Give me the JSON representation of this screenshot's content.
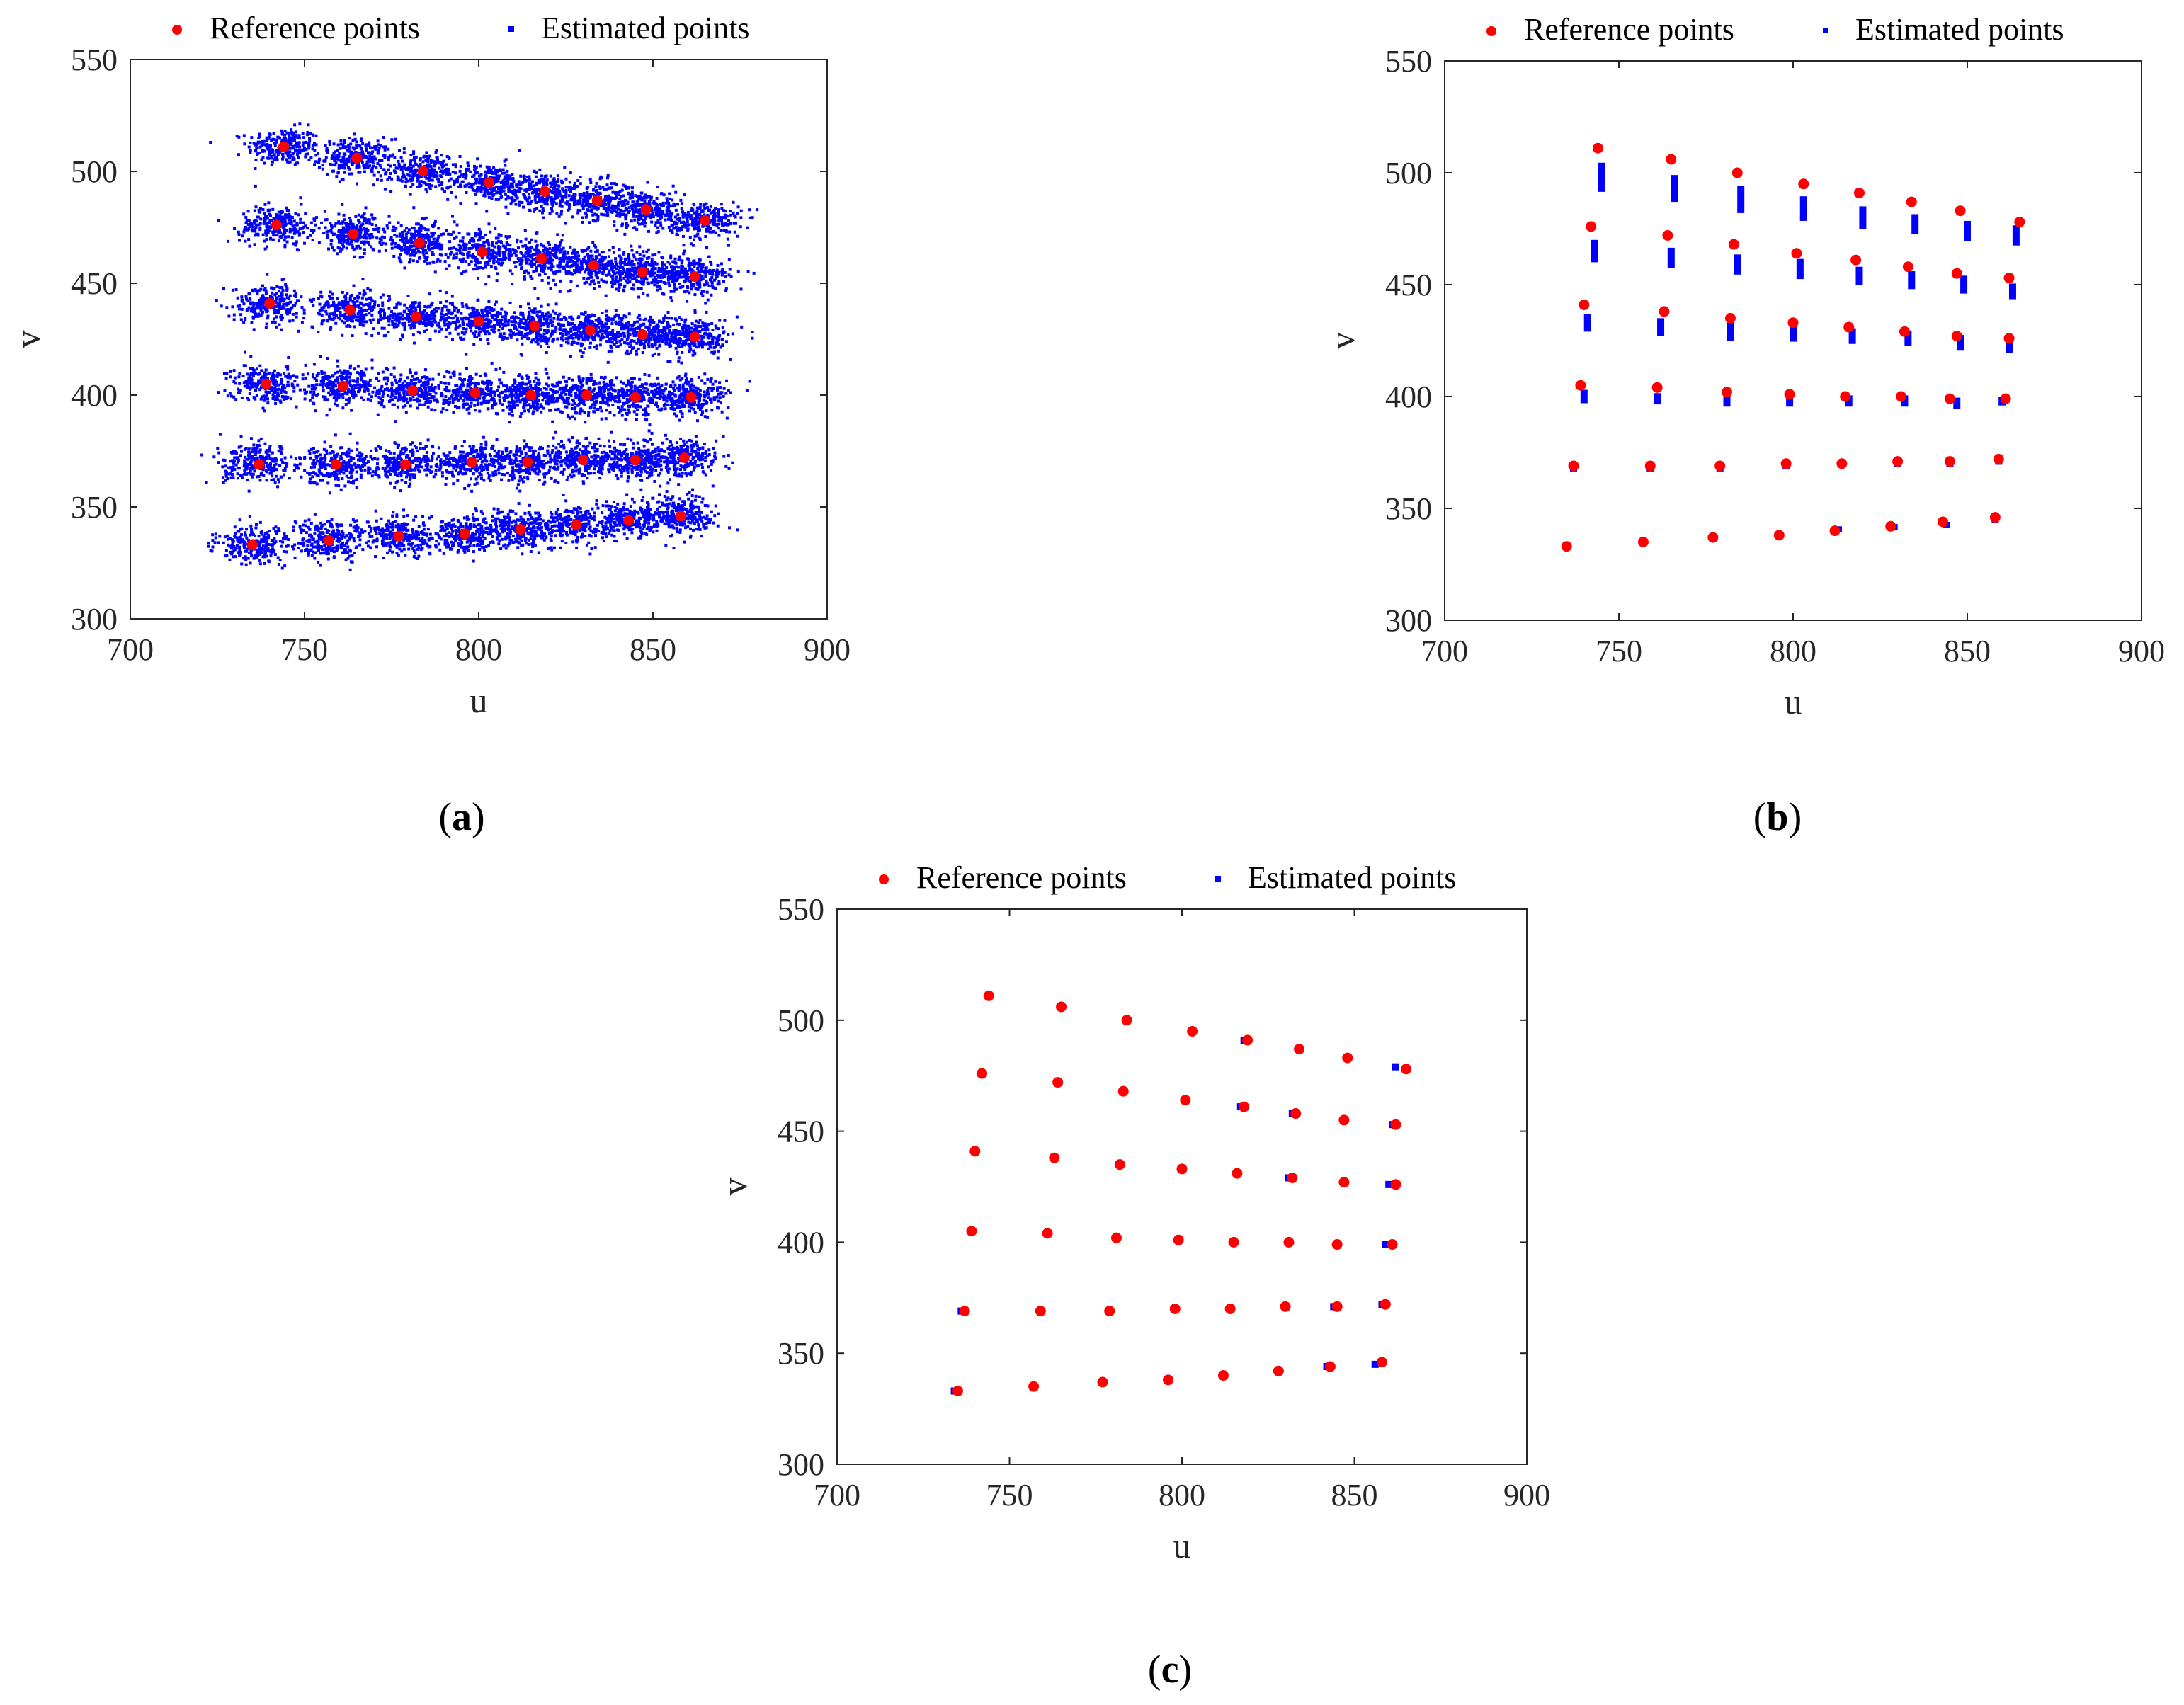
{
  "figure": {
    "captions": [
      "a",
      "b",
      "c"
    ]
  },
  "legend": {
    "reference_label": "Reference points",
    "estimated_label": "Estimated points"
  },
  "colors": {
    "reference": "#ff0000",
    "estimated": "#0000ff",
    "axes": "#262626"
  },
  "chart_data": [
    {
      "id": "a",
      "type": "scatter",
      "title": "",
      "xlabel": "u",
      "ylabel": "v",
      "xlim": [
        700,
        900
      ],
      "ylim": [
        300,
        550
      ],
      "xticks": [
        700,
        750,
        800,
        850,
        900
      ],
      "yticks": [
        300,
        350,
        400,
        450,
        500,
        550
      ],
      "legend_position": "top-outside",
      "series": [
        {
          "name": "Reference points",
          "marker": "circle",
          "color": "#ff0000",
          "points": [
            [
              744,
              511
            ],
            [
              765,
              506
            ],
            [
              784,
              500
            ],
            [
              803,
              495
            ],
            [
              819,
              491
            ],
            [
              834,
              487
            ],
            [
              848,
              483
            ],
            [
              865,
              478
            ],
            [
              742,
              476
            ],
            [
              764,
              472
            ],
            [
              783,
              468
            ],
            [
              801,
              464
            ],
            [
              818,
              461
            ],
            [
              833,
              458
            ],
            [
              847,
              455
            ],
            [
              862,
              453
            ],
            [
              740,
              441
            ],
            [
              763,
              438
            ],
            [
              782,
              435
            ],
            [
              800,
              433
            ],
            [
              816,
              431
            ],
            [
              832,
              429
            ],
            [
              847,
              427
            ],
            [
              862,
              426
            ],
            [
              739,
              405
            ],
            [
              761,
              404
            ],
            [
              781,
              402
            ],
            [
              799,
              401
            ],
            [
              815,
              400
            ],
            [
              831,
              400
            ],
            [
              845,
              399
            ],
            [
              861,
              399
            ],
            [
              737,
              369
            ],
            [
              759,
              369
            ],
            [
              779,
              369
            ],
            [
              798,
              370
            ],
            [
              814,
              370
            ],
            [
              830,
              371
            ],
            [
              845,
              371
            ],
            [
              859,
              372
            ],
            [
              735,
              333
            ],
            [
              757,
              335
            ],
            [
              777,
              337
            ],
            [
              796,
              338
            ],
            [
              812,
              340
            ],
            [
              828,
              342
            ],
            [
              843,
              344
            ],
            [
              858,
              346
            ]
          ]
        },
        {
          "name": "Estimated points",
          "marker": "square",
          "color": "#0000ff",
          "distribution": "dense clouds around each reference point, spread approx ±10 in u and ±8 in v",
          "sample_count_per_point": 260
        }
      ]
    },
    {
      "id": "b",
      "type": "scatter",
      "title": "",
      "xlabel": "u",
      "ylabel": "v",
      "xlim": [
        700,
        900
      ],
      "ylim": [
        300,
        550
      ],
      "xticks": [
        700,
        750,
        800,
        850,
        900
      ],
      "yticks": [
        300,
        350,
        400,
        450,
        500,
        550
      ],
      "legend_position": "top-outside",
      "series": [
        {
          "name": "Reference points",
          "marker": "circle",
          "color": "#ff0000",
          "points": [
            [
              744,
              511
            ],
            [
              765,
              506
            ],
            [
              784,
              500
            ],
            [
              803,
              495
            ],
            [
              819,
              491
            ],
            [
              834,
              487
            ],
            [
              848,
              483
            ],
            [
              865,
              478
            ],
            [
              742,
              476
            ],
            [
              764,
              472
            ],
            [
              783,
              468
            ],
            [
              801,
              464
            ],
            [
              818,
              461
            ],
            [
              833,
              458
            ],
            [
              847,
              455
            ],
            [
              862,
              453
            ],
            [
              740,
              441
            ],
            [
              763,
              438
            ],
            [
              782,
              435
            ],
            [
              800,
              433
            ],
            [
              816,
              431
            ],
            [
              832,
              429
            ],
            [
              847,
              427
            ],
            [
              862,
              426
            ],
            [
              739,
              405
            ],
            [
              761,
              404
            ],
            [
              781,
              402
            ],
            [
              799,
              401
            ],
            [
              815,
              400
            ],
            [
              831,
              400
            ],
            [
              845,
              399
            ],
            [
              861,
              399
            ],
            [
              737,
              369
            ],
            [
              759,
              369
            ],
            [
              779,
              369
            ],
            [
              798,
              370
            ],
            [
              814,
              370
            ],
            [
              830,
              371
            ],
            [
              845,
              371
            ],
            [
              859,
              372
            ],
            [
              735,
              333
            ],
            [
              757,
              335
            ],
            [
              777,
              337
            ],
            [
              796,
              338
            ],
            [
              812,
              340
            ],
            [
              828,
              342
            ],
            [
              843,
              344
            ],
            [
              858,
              346
            ]
          ]
        },
        {
          "name": "Estimated points",
          "marker": "square",
          "color": "#0000ff",
          "distribution": "short vertical streaks just below each reference point",
          "streak_centers": [
            [
              745,
              498
            ],
            [
              766,
              493
            ],
            [
              785,
              488
            ],
            [
              803,
              484
            ],
            [
              820,
              480
            ],
            [
              835,
              477
            ],
            [
              850,
              474
            ],
            [
              864,
              472
            ],
            [
              743,
              465
            ],
            [
              765,
              462
            ],
            [
              784,
              459
            ],
            [
              802,
              457
            ],
            [
              819,
              454
            ],
            [
              834,
              452
            ],
            [
              849,
              450
            ],
            [
              863,
              447
            ],
            [
              741,
              433
            ],
            [
              762,
              431
            ],
            [
              782,
              429
            ],
            [
              800,
              428
            ],
            [
              817,
              427
            ],
            [
              833,
              426
            ],
            [
              848,
              424
            ],
            [
              862,
              423
            ],
            [
              740,
              400
            ],
            [
              761,
              399
            ],
            [
              781,
              398
            ],
            [
              799,
              398
            ],
            [
              816,
              398
            ],
            [
              832,
              398
            ],
            [
              847,
              397
            ],
            [
              860,
              398
            ],
            [
              737,
              368
            ],
            [
              759,
              368
            ],
            [
              779,
              368
            ],
            [
              798,
              369
            ],
            [
              814,
              370
            ],
            [
              830,
              370
            ],
            [
              845,
              370
            ],
            [
              859,
              371
            ],
            [
              735,
              333
            ],
            [
              757,
              335
            ],
            [
              777,
              337
            ],
            [
              796,
              338
            ],
            [
              813,
              341
            ],
            [
              829,
              342
            ],
            [
              844,
              343
            ],
            [
              858,
              345
            ]
          ],
          "streak_lengths": [
            [
              13,
              12,
              12,
              11,
              10,
              9,
              9,
              9
            ],
            [
              10,
              9,
              9,
              9,
              8,
              8,
              8,
              7
            ],
            [
              8,
              8,
              8,
              7,
              7,
              7,
              7,
              7
            ],
            [
              6,
              5,
              5,
              5,
              5,
              5,
              5,
              4
            ],
            [
              3,
              3,
              3,
              3,
              3,
              3,
              3,
              3
            ],
            [
              2,
              2,
              2,
              2,
              2,
              2,
              2,
              2
            ]
          ]
        }
      ]
    },
    {
      "id": "c",
      "type": "scatter",
      "title": "",
      "xlabel": "u",
      "ylabel": "v",
      "xlim": [
        700,
        900
      ],
      "ylim": [
        300,
        550
      ],
      "xticks": [
        700,
        750,
        800,
        850,
        900
      ],
      "yticks": [
        300,
        350,
        400,
        450,
        500,
        550
      ],
      "legend_position": "top-outside",
      "series": [
        {
          "name": "Reference points",
          "marker": "circle",
          "color": "#ff0000",
          "points": [
            [
              744,
              511
            ],
            [
              765,
              506
            ],
            [
              784,
              500
            ],
            [
              803,
              495
            ],
            [
              819,
              491
            ],
            [
              834,
              487
            ],
            [
              848,
              483
            ],
            [
              865,
              478
            ],
            [
              742,
              476
            ],
            [
              764,
              472
            ],
            [
              783,
              468
            ],
            [
              801,
              464
            ],
            [
              818,
              461
            ],
            [
              833,
              458
            ],
            [
              847,
              455
            ],
            [
              862,
              453
            ],
            [
              740,
              441
            ],
            [
              763,
              438
            ],
            [
              782,
              435
            ],
            [
              800,
              433
            ],
            [
              816,
              431
            ],
            [
              832,
              429
            ],
            [
              847,
              427
            ],
            [
              862,
              426
            ],
            [
              739,
              405
            ],
            [
              761,
              404
            ],
            [
              781,
              402
            ],
            [
              799,
              401
            ],
            [
              815,
              400
            ],
            [
              831,
              400
            ],
            [
              845,
              399
            ],
            [
              861,
              399
            ],
            [
              737,
              369
            ],
            [
              759,
              369
            ],
            [
              779,
              369
            ],
            [
              798,
              370
            ],
            [
              814,
              370
            ],
            [
              830,
              371
            ],
            [
              845,
              371
            ],
            [
              859,
              372
            ],
            [
              735,
              333
            ],
            [
              757,
              335
            ],
            [
              777,
              337
            ],
            [
              796,
              338
            ],
            [
              812,
              340
            ],
            [
              828,
              342
            ],
            [
              843,
              344
            ],
            [
              858,
              346
            ]
          ]
        },
        {
          "name": "Estimated points",
          "marker": "square",
          "color": "#0000ff",
          "points": [
            [
              744,
              511
            ],
            [
              765,
              506
            ],
            [
              784,
              500
            ],
            [
              803,
              495
            ],
            [
              818,
              491
            ],
            [
              834,
              487
            ],
            [
              848,
              483
            ],
            [
              862,
              479
            ],
            [
              742,
              476
            ],
            [
              764,
              472
            ],
            [
              783,
              468
            ],
            [
              801,
              464
            ],
            [
              817,
              461
            ],
            [
              832,
              458
            ],
            [
              847,
              455
            ],
            [
              861,
              453
            ],
            [
              740,
              441
            ],
            [
              763,
              438
            ],
            [
              782,
              435
            ],
            [
              800,
              433
            ],
            [
              816,
              431
            ],
            [
              831,
              429
            ],
            [
              847,
              427
            ],
            [
              860,
              426
            ],
            [
              739,
              405
            ],
            [
              761,
              404
            ],
            [
              781,
              402
            ],
            [
              799,
              401
            ],
            [
              815,
              400
            ],
            [
              831,
              400
            ],
            [
              845,
              399
            ],
            [
              859,
              399
            ],
            [
              736,
              369
            ],
            [
              759,
              369
            ],
            [
              779,
              369
            ],
            [
              798,
              370
            ],
            [
              814,
              370
            ],
            [
              830,
              371
            ],
            [
              844,
              371
            ],
            [
              858,
              372
            ],
            [
              734,
              333
            ],
            [
              757,
              335
            ],
            [
              777,
              337
            ],
            [
              796,
              338
            ],
            [
              812,
              340
            ],
            [
              828,
              342
            ],
            [
              842,
              344
            ],
            [
              856,
              345
            ]
          ]
        }
      ]
    }
  ]
}
